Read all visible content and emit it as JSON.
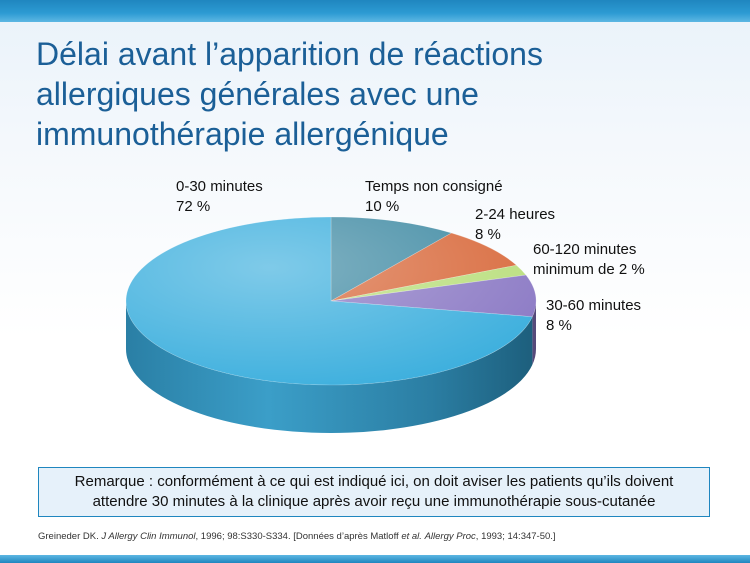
{
  "title_lines": [
    "Délai avant l’apparition de réactions",
    "allergiques générales avec une",
    "immunothérapie allergénique"
  ],
  "chart_data": {
    "type": "pie",
    "slices": [
      {
        "label": "0-30 minutes",
        "value_label": "72 %",
        "value": 72,
        "color": "#3aaedd"
      },
      {
        "label": "Temps non consigné",
        "value_label": "10 %",
        "value": 10,
        "color": "#3f8aa3"
      },
      {
        "label": "2-24 heures",
        "value_label": "8 %",
        "value": 8,
        "color": "#d8683a"
      },
      {
        "label": "60-120 minutes",
        "value_label": "minimum de 2 %",
        "value": 2,
        "color": "#b9de7c"
      },
      {
        "label": "30-60 minutes",
        "value_label": "8 %",
        "value": 8,
        "color": "#8a78c4"
      }
    ]
  },
  "note_lines": [
    "Remarque : conformément à ce qui est indiqué ici, on doit aviser les patients qu’ils doivent",
    "attendre 30 minutes à la clinique après avoir reçu une immunothérapie sous-cutanée"
  ],
  "reference": {
    "author": "Greineder DK. ",
    "journal1": "J Allergy Clin Immunol",
    "part1": ", 1996; 98:S330-S334. [Données d’après Matloff ",
    "etal": "et al.",
    "space": " ",
    "journal2": "Allergy Proc",
    "part2": ", 1993; 14:347-50.]"
  }
}
